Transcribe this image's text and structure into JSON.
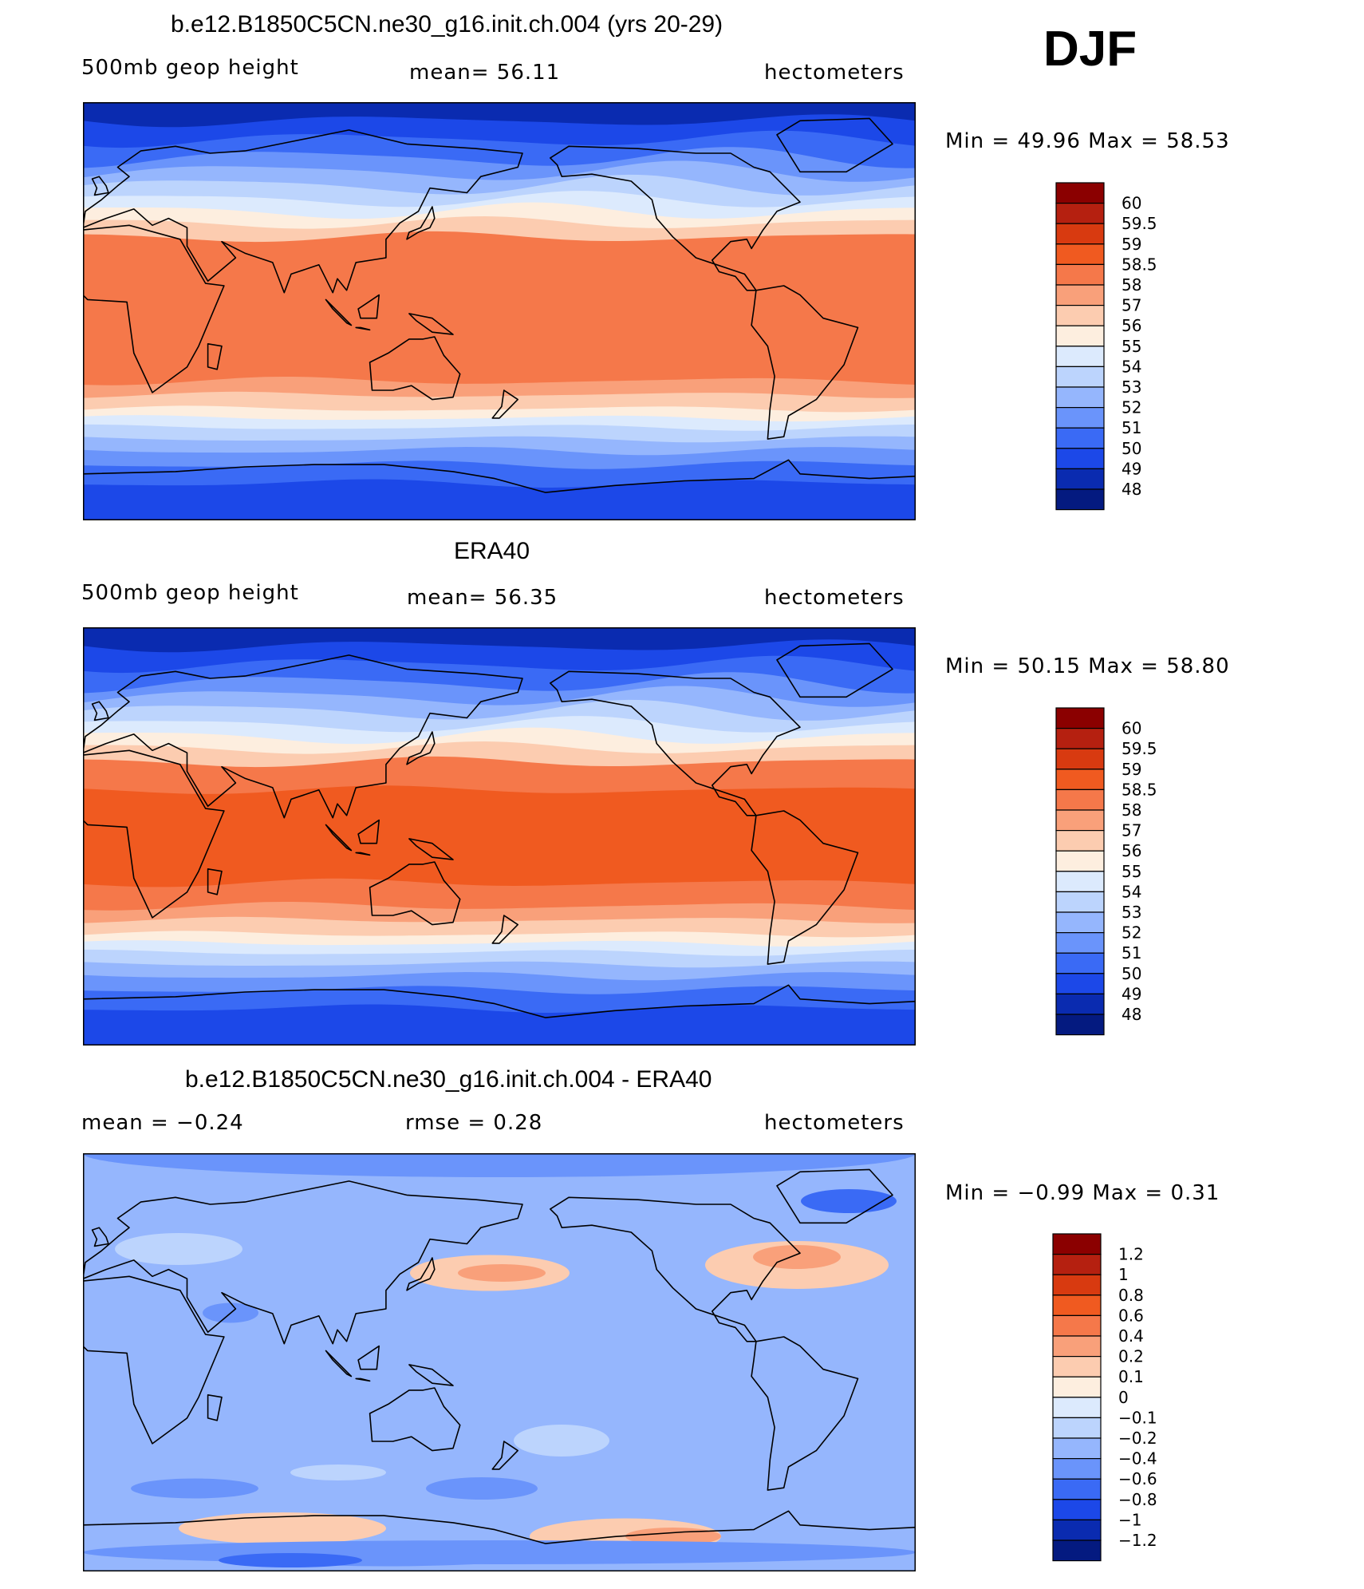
{
  "season": "DJF",
  "panels": [
    {
      "title": "b.e12.B1850C5CN.ne30_g16.init.ch.004 (yrs 20-29)",
      "left_label": "500mb  geop  height",
      "mid_label": "mean=   56.11",
      "right_label": "hectometers",
      "minmax": "Min  =    49.96  Max  =    58.53",
      "colorbar": {
        "labels": [
          "60",
          "59.5",
          "59",
          "58.5",
          "58",
          "57",
          "56",
          "55",
          "54",
          "53",
          "52",
          "51",
          "50",
          "49",
          "48"
        ],
        "colors": [
          "#8b0000",
          "#b52010",
          "#d83a10",
          "#f05a20",
          "#f5784a",
          "#f9a07a",
          "#fcccb0",
          "#fdeedf",
          "#dceafd",
          "#bcd4fd",
          "#95b6fd",
          "#6a94fb",
          "#3a6af5",
          "#1c48e8",
          "#0a2bb0",
          "#041a80"
        ]
      },
      "bands_kind": "model"
    },
    {
      "title": "ERA40",
      "left_label": "500mb  geop  height",
      "mid_label": "mean=   56.35",
      "right_label": "hectometers",
      "minmax": "Min  =    50.15  Max  =    58.80",
      "colorbar": {
        "labels": [
          "60",
          "59.5",
          "59",
          "58.5",
          "58",
          "57",
          "56",
          "55",
          "54",
          "53",
          "52",
          "51",
          "50",
          "49",
          "48"
        ],
        "colors": [
          "#8b0000",
          "#b52010",
          "#d83a10",
          "#f05a20",
          "#f5784a",
          "#f9a07a",
          "#fcccb0",
          "#fdeedf",
          "#dceafd",
          "#bcd4fd",
          "#95b6fd",
          "#6a94fb",
          "#3a6af5",
          "#1c48e8",
          "#0a2bb0",
          "#041a80"
        ]
      },
      "bands_kind": "obs"
    },
    {
      "title": "b.e12.B1850C5CN.ne30_g16.init.ch.004 - ERA40",
      "left_label": "mean  =    −0.24",
      "mid_label": "rmse  =     0.28",
      "right_label": "hectometers",
      "minmax": "Min  =   −0.99  Max  =     0.31",
      "colorbar": {
        "labels": [
          "1.2",
          "1",
          "0.8",
          "0.6",
          "0.4",
          "0.2",
          "0.1",
          "0",
          "−0.1",
          "−0.2",
          "−0.4",
          "−0.6",
          "−0.8",
          "−1",
          "−1.2"
        ],
        "colors": [
          "#8b0000",
          "#b52010",
          "#d83a10",
          "#f05a20",
          "#f5784a",
          "#f9a07a",
          "#fcccb0",
          "#fdeedf",
          "#dceafd",
          "#bcd4fd",
          "#95b6fd",
          "#6a94fb",
          "#3a6af5",
          "#1c48e8",
          "#0a2bb0",
          "#041a80"
        ]
      },
      "bands_kind": "diff"
    }
  ]
}
